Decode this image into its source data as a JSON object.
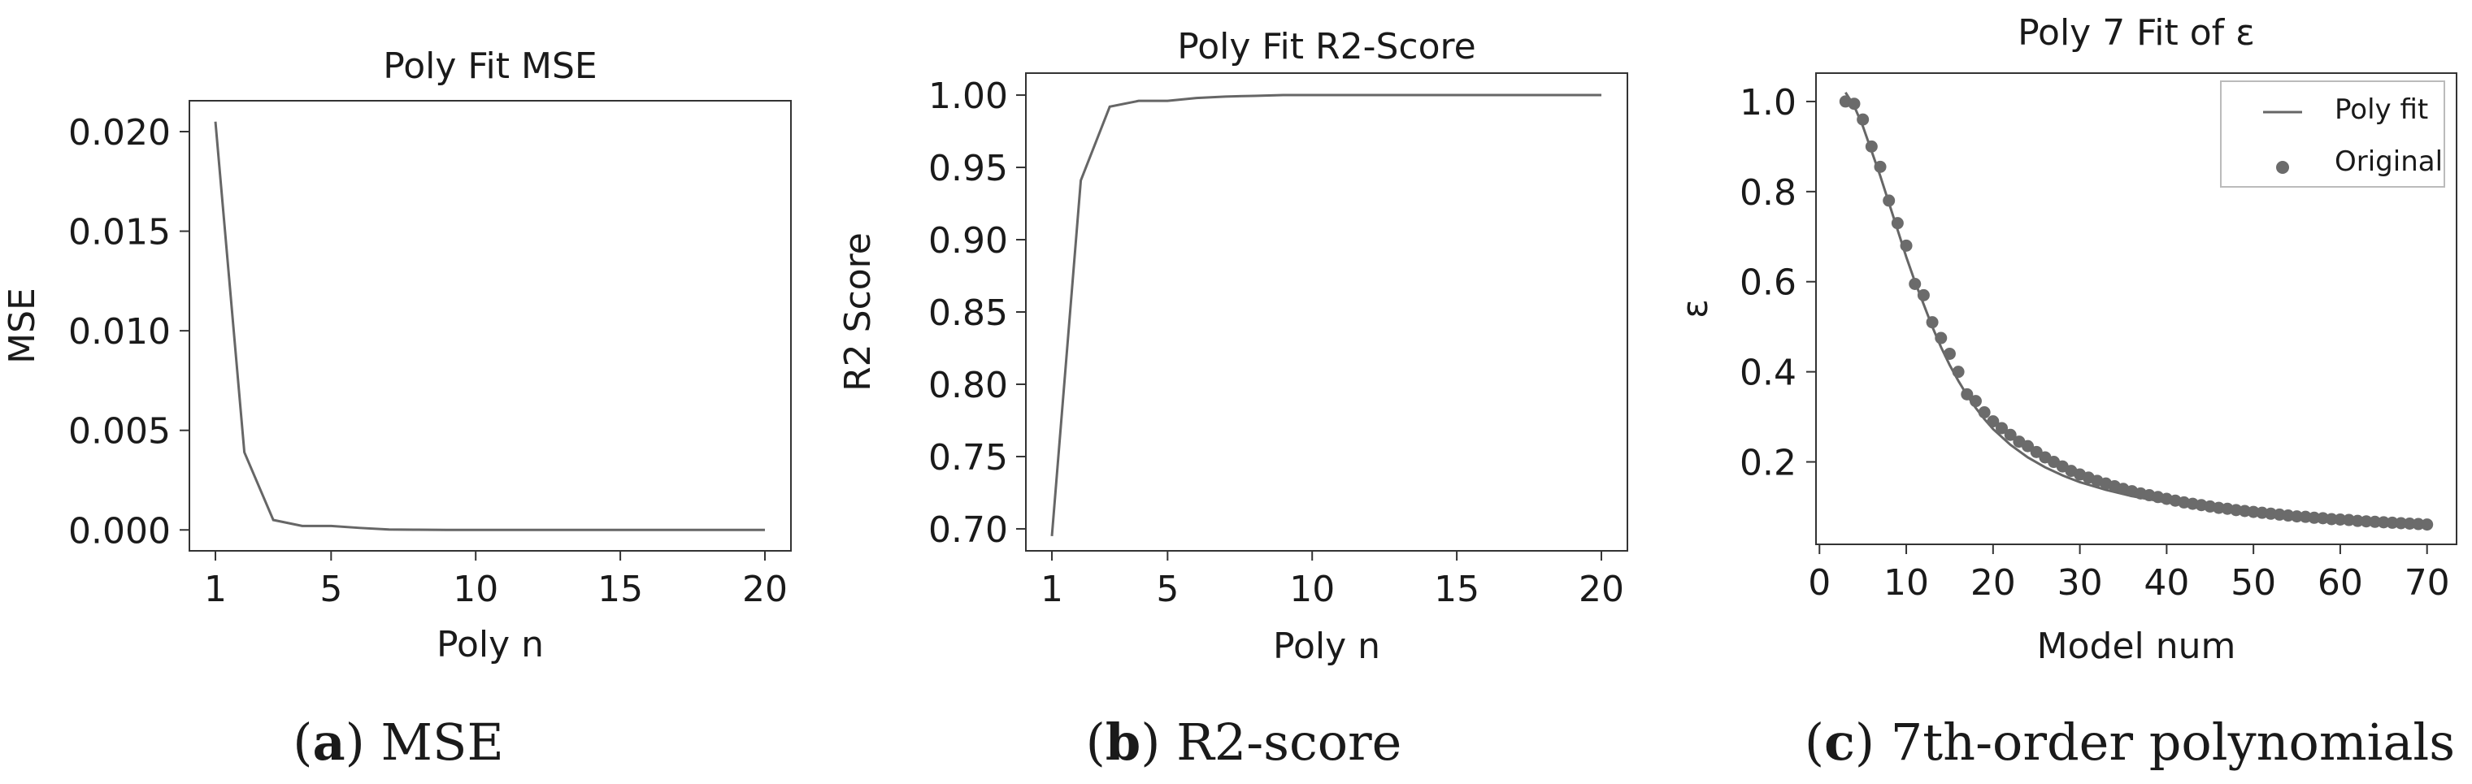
{
  "colors": {
    "line": "#666666",
    "marker": "#6b6b6b",
    "frame": "#333333",
    "text": "#1a1a1a"
  },
  "chart_data": [
    {
      "type": "line",
      "title": "Poly Fit MSE",
      "xlabel": "Poly n",
      "ylabel": "MSE",
      "xlim": [
        0.1,
        20.9
      ],
      "ylim": [
        -0.00105,
        0.02155
      ],
      "xticks": [
        1,
        5,
        10,
        15,
        20
      ],
      "yticks": [
        0.0,
        0.005,
        0.01,
        0.015,
        0.02
      ],
      "ytick_labels": [
        "0.000",
        "0.005",
        "0.010",
        "0.015",
        "0.020"
      ],
      "grid": false,
      "x": [
        1,
        2,
        3,
        4,
        5,
        6,
        7,
        8,
        9,
        10,
        11,
        12,
        13,
        14,
        15,
        16,
        17,
        18,
        19,
        20
      ],
      "series": [
        {
          "values": [
            0.0205,
            0.0039,
            0.0005,
            0.0002,
            0.0002,
            0.0001,
            2e-05,
            1e-05,
            0,
            0,
            0,
            0,
            0,
            0,
            0,
            0,
            0,
            0,
            0,
            0
          ]
        }
      ],
      "caption_label": "a",
      "caption_text": "MSE"
    },
    {
      "type": "line",
      "title": "Poly Fit R2-Score",
      "xlabel": "Poly n",
      "ylabel": "R2 Score",
      "xlim": [
        0.1,
        20.9
      ],
      "ylim": [
        0.6848,
        1.0152
      ],
      "xticks": [
        1,
        5,
        10,
        15,
        20
      ],
      "yticks": [
        0.7,
        0.75,
        0.8,
        0.85,
        0.9,
        0.95,
        1.0
      ],
      "ytick_labels": [
        "0.70",
        "0.75",
        "0.80",
        "0.85",
        "0.90",
        "0.95",
        "1.00"
      ],
      "grid": false,
      "x": [
        1,
        2,
        3,
        4,
        5,
        6,
        7,
        8,
        9,
        10,
        11,
        12,
        13,
        14,
        15,
        16,
        17,
        18,
        19,
        20
      ],
      "series": [
        {
          "values": [
            0.695,
            0.941,
            0.992,
            0.996,
            0.996,
            0.998,
            0.999,
            0.9995,
            1.0,
            1.0,
            1.0,
            1.0,
            1.0,
            1.0,
            1.0,
            1.0,
            1.0,
            1.0,
            1.0,
            1.0
          ]
        }
      ],
      "caption_label": "b",
      "caption_text": "R2-score"
    },
    {
      "type": "scatter",
      "title": "Poly 7 Fit of ε",
      "xlabel": "Model num",
      "ylabel": "ε",
      "xlim": [
        -0.4,
        73.4
      ],
      "ylim": [
        0.017,
        1.063
      ],
      "xticks": [
        0,
        10,
        20,
        30,
        40,
        50,
        60,
        70
      ],
      "yticks": [
        0.2,
        0.4,
        0.6,
        0.8,
        1.0
      ],
      "ytick_labels": [
        "0.2",
        "0.4",
        "0.6",
        "0.8",
        "1.0"
      ],
      "grid": false,
      "legend_position": "upper-right",
      "series": [
        {
          "name": "Poly fit",
          "kind": "line",
          "x": [
            3,
            4,
            5,
            6,
            7,
            8,
            9,
            10,
            11,
            12,
            13,
            14,
            15,
            16,
            17,
            18,
            19,
            20,
            22,
            24,
            26,
            28,
            30,
            33,
            36,
            40,
            45,
            50,
            55,
            60,
            65,
            70
          ],
          "y": [
            1.02,
            0.99,
            0.945,
            0.89,
            0.835,
            0.775,
            0.715,
            0.655,
            0.6,
            0.55,
            0.5,
            0.455,
            0.415,
            0.38,
            0.348,
            0.32,
            0.295,
            0.273,
            0.238,
            0.21,
            0.188,
            0.17,
            0.155,
            0.138,
            0.124,
            0.11,
            0.097,
            0.086,
            0.077,
            0.07,
            0.064,
            0.059
          ]
        },
        {
          "name": "Original",
          "kind": "scatter",
          "x": [
            3,
            4,
            5,
            6,
            7,
            8,
            9,
            10,
            11,
            12,
            13,
            14,
            15,
            16,
            17,
            18,
            19,
            20,
            21,
            22,
            23,
            24,
            25,
            26,
            27,
            28,
            29,
            30,
            31,
            32,
            33,
            34,
            35,
            36,
            37,
            38,
            39,
            40,
            41,
            42,
            43,
            44,
            45,
            46,
            47,
            48,
            49,
            50,
            51,
            52,
            53,
            54,
            55,
            56,
            57,
            58,
            59,
            60,
            61,
            62,
            63,
            64,
            65,
            66,
            67,
            68,
            69,
            70
          ],
          "y": [
            1.0,
            0.995,
            0.96,
            0.9,
            0.855,
            0.78,
            0.73,
            0.68,
            0.595,
            0.57,
            0.51,
            0.475,
            0.44,
            0.4,
            0.35,
            0.335,
            0.31,
            0.29,
            0.275,
            0.26,
            0.245,
            0.235,
            0.222,
            0.21,
            0.2,
            0.19,
            0.18,
            0.172,
            0.165,
            0.158,
            0.152,
            0.146,
            0.14,
            0.135,
            0.13,
            0.126,
            0.122,
            0.118,
            0.114,
            0.11,
            0.107,
            0.104,
            0.101,
            0.098,
            0.096,
            0.093,
            0.091,
            0.089,
            0.087,
            0.085,
            0.083,
            0.081,
            0.079,
            0.078,
            0.076,
            0.075,
            0.073,
            0.072,
            0.071,
            0.069,
            0.068,
            0.067,
            0.066,
            0.065,
            0.064,
            0.063,
            0.062,
            0.061
          ]
        }
      ],
      "caption_label": "c",
      "caption_text": "7th-order polynomials"
    }
  ]
}
